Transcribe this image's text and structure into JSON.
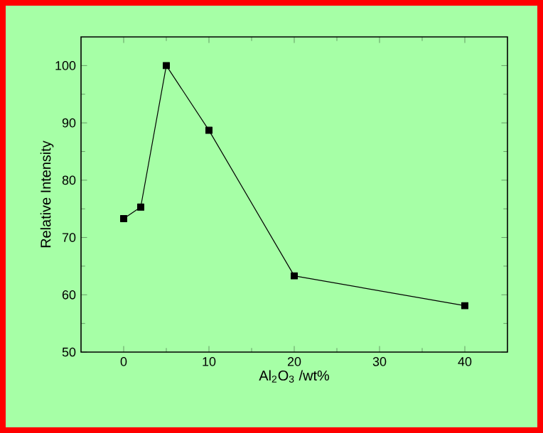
{
  "chart_data": {
    "type": "line",
    "xlabel": "Al$_{2}$O$_{3}$ /wt%",
    "ylabel": "Relative Intensity",
    "x": [
      0,
      2,
      5,
      10,
      20,
      40
    ],
    "series": [
      {
        "color": "#000000",
        "values": [
          73.3,
          75.3,
          100,
          88.7,
          63.3,
          58.1
        ]
      }
    ],
    "xlim": [
      -5,
      45
    ],
    "xticks": [
      0,
      10,
      20,
      30,
      40
    ],
    "ylim": [
      50,
      105
    ],
    "yticks": [
      50,
      60,
      70,
      80,
      90,
      100
    ],
    "marker": "square",
    "line_style": "solid",
    "grid": false
  }
}
